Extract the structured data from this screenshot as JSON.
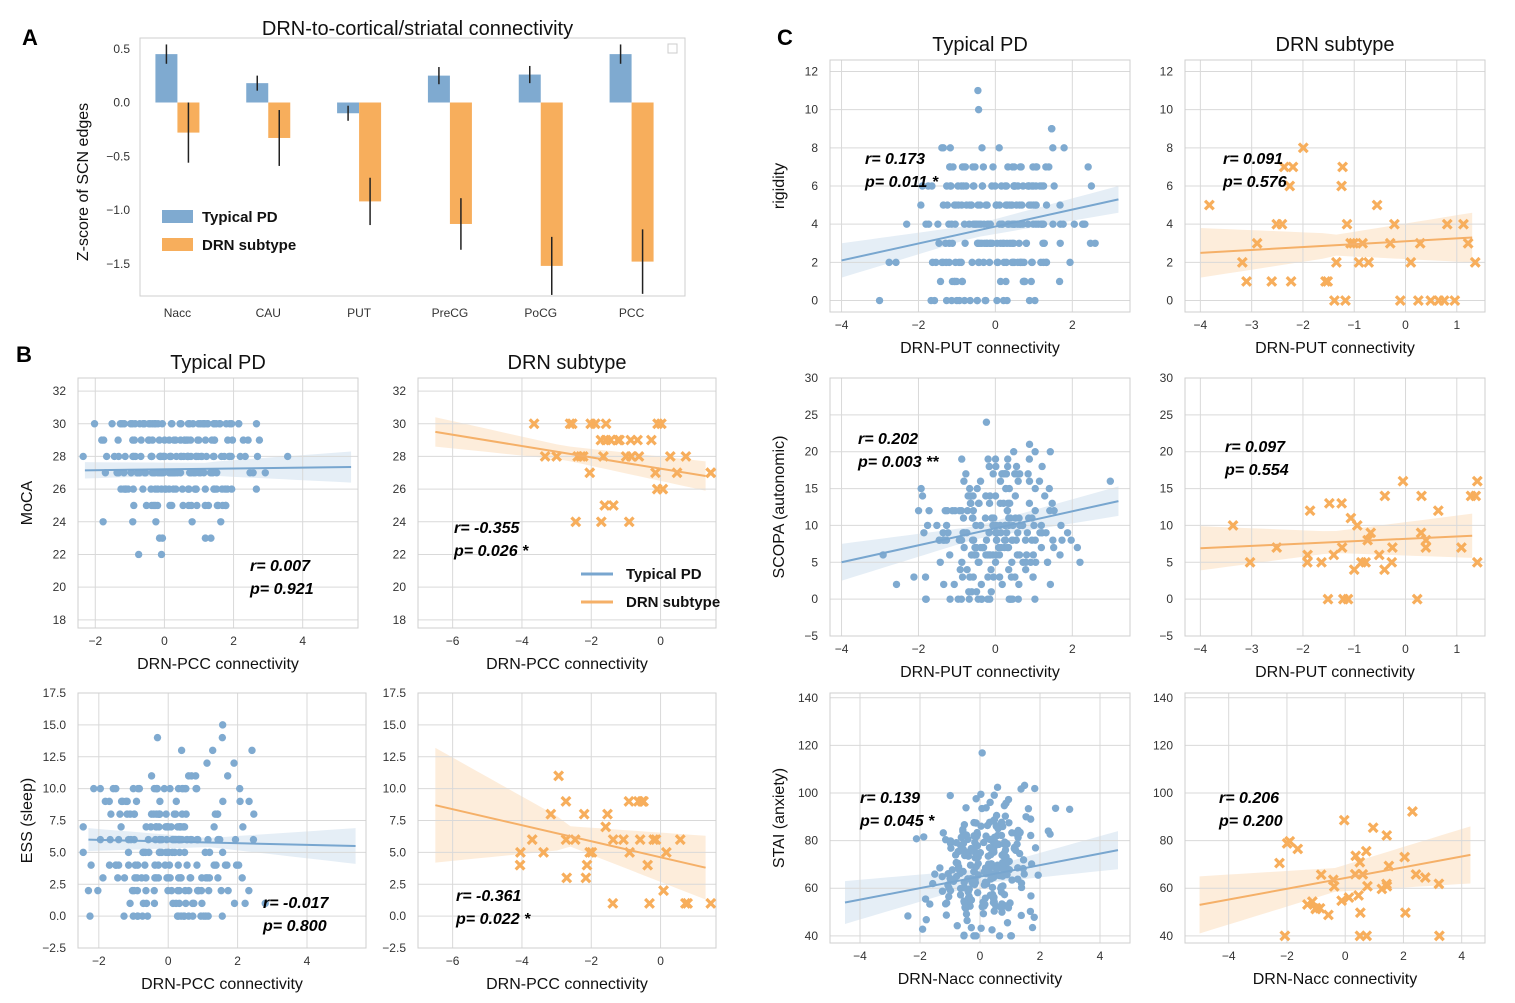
{
  "colors": {
    "typical": "#7FAAD0",
    "drn": "#F7AE5C",
    "typical_line": "#78A6CF",
    "drn_line": "#F5B068"
  },
  "legend": {
    "typical": "Typical PD",
    "drn": "DRN subtype"
  },
  "chart_data": [
    {
      "id": "A",
      "panel_label": "A",
      "type": "bar",
      "title": "DRN-to-cortical/striatal connectivity",
      "xlabel": "",
      "ylabel": "Z-score of SCN edges",
      "ylim": [
        -1.8,
        0.6
      ],
      "yticks": [
        -1.5,
        -1.0,
        -0.5,
        0.0,
        0.5
      ],
      "ytick_labels": [
        "−1.5",
        "−1.0",
        "−0.5",
        "0.0",
        "0.5"
      ],
      "categories": [
        "Nacc",
        "CAU",
        "PUT",
        "PreCG",
        "PoCG",
        "PCC"
      ],
      "series": [
        {
          "name": "Typical PD",
          "values": [
            0.45,
            0.18,
            -0.1,
            0.25,
            0.26,
            0.45
          ],
          "err": [
            0.09,
            0.07,
            0.07,
            0.08,
            0.08,
            0.09
          ]
        },
        {
          "name": "DRN subtype",
          "values": [
            -0.28,
            -0.33,
            -0.92,
            -1.13,
            -1.52,
            -1.48
          ],
          "err": [
            0.28,
            0.26,
            0.22,
            0.24,
            0.27,
            0.3
          ]
        }
      ],
      "grid": false,
      "legend_position": "lower-left"
    },
    {
      "id": "B1",
      "panel_label": "B",
      "type": "scatter",
      "title": "Typical PD",
      "xlabel": "DRN-PCC connectivity",
      "ylabel": "MoCA",
      "xlim": [
        -2.5,
        5.6
      ],
      "ylim": [
        17.5,
        32.8
      ],
      "xticks": [
        -2,
        0,
        2,
        4
      ],
      "xtick_labels": [
        "−2",
        "0",
        "2",
        "4"
      ],
      "yticks": [
        18,
        20,
        22,
        24,
        26,
        28,
        30,
        32
      ],
      "ytick_labels": [
        "18",
        "20",
        "22",
        "24",
        "26",
        "28",
        "30",
        "32"
      ],
      "stats": [
        "r= 0.007",
        "p= 0.921"
      ],
      "fit": [
        -2.3,
        27.15,
        5.4,
        27.35
      ],
      "band": [
        0.5,
        0.35,
        0.45,
        0.95
      ],
      "group": "typical"
    },
    {
      "id": "B2",
      "type": "scatter",
      "title": "DRN subtype",
      "xlabel": "DRN-PCC connectivity",
      "ylabel": "",
      "xlim": [
        -7.0,
        1.6
      ],
      "ylim": [
        17.5,
        32.8
      ],
      "xticks": [
        -6,
        -4,
        -2,
        0
      ],
      "xtick_labels": [
        "−6",
        "−4",
        "−2",
        "0"
      ],
      "yticks": [
        18,
        20,
        22,
        24,
        26,
        28,
        30,
        32
      ],
      "ytick_labels": [
        "18",
        "20",
        "22",
        "24",
        "26",
        "28",
        "30",
        "32"
      ],
      "stats": [
        "r= -0.355",
        "p= 0.026 *"
      ],
      "fit": [
        -6.5,
        29.5,
        1.3,
        26.8
      ],
      "band": [
        0.9,
        0.4,
        0.45,
        0.9
      ],
      "group": "drn",
      "legend": true
    },
    {
      "id": "B3",
      "type": "scatter",
      "title": "",
      "xlabel": "DRN-PCC connectivity",
      "ylabel": "ESS (sleep)",
      "xlim": [
        -2.6,
        5.7
      ],
      "ylim": [
        -2.5,
        17.5
      ],
      "xticks": [
        -2,
        0,
        2,
        4
      ],
      "xtick_labels": [
        "−2",
        "0",
        "2",
        "4"
      ],
      "yticks": [
        -2.5,
        0,
        2.5,
        5,
        7.5,
        10,
        12.5,
        15,
        17.5
      ],
      "ytick_labels": [
        "−2.5",
        "0.0",
        "2.5",
        "5.0",
        "7.5",
        "10.0",
        "12.5",
        "15.0",
        "17.5"
      ],
      "stats": [
        "r= -0.017",
        "p= 0.800"
      ],
      "fit": [
        -2.3,
        6.0,
        5.4,
        5.5
      ],
      "band": [
        0.9,
        0.3,
        0.45,
        1.4
      ],
      "group": "typical"
    },
    {
      "id": "B4",
      "type": "scatter",
      "title": "",
      "xlabel": "DRN-PCC connectivity",
      "ylabel": "",
      "xlim": [
        -7.0,
        1.6
      ],
      "ylim": [
        -2.5,
        17.5
      ],
      "xticks": [
        -6,
        -4,
        -2,
        0
      ],
      "xtick_labels": [
        "−6",
        "−4",
        "−2",
        "0"
      ],
      "yticks": [
        -2.5,
        0,
        2.5,
        5,
        7.5,
        10,
        12.5,
        15,
        17.5
      ],
      "ytick_labels": [
        "−2.5",
        "0.0",
        "2.5",
        "5.0",
        "7.5",
        "10.0",
        "12.5",
        "15.0",
        "17.5"
      ],
      "stats": [
        "r= -0.361",
        "p= 0.022 *"
      ],
      "fit": [
        -6.5,
        8.7,
        1.3,
        3.8
      ],
      "band": [
        4.5,
        1.0,
        0.8,
        2.5
      ],
      "group": "drn"
    },
    {
      "id": "C1",
      "panel_label": "C",
      "type": "scatter",
      "title": "Typical PD",
      "xlabel": "DRN-PUT connectivity",
      "ylabel": "rigidity",
      "xlim": [
        -4.3,
        3.5
      ],
      "ylim": [
        -0.6,
        12.6
      ],
      "xticks": [
        -4,
        -2,
        0,
        2
      ],
      "xtick_labels": [
        "−4",
        "−2",
        "0",
        "2"
      ],
      "yticks": [
        0,
        2,
        4,
        6,
        8,
        10,
        12
      ],
      "ytick_labels": [
        "0",
        "2",
        "4",
        "6",
        "8",
        "10",
        "12"
      ],
      "stats": [
        "r= 0.173",
        "p= 0.011 *"
      ],
      "fit": [
        -4.0,
        2.1,
        3.2,
        5.3
      ],
      "band": [
        0.9,
        0.3,
        0.35,
        0.7
      ],
      "group": "typical"
    },
    {
      "id": "C2",
      "type": "scatter",
      "title": "DRN subtype",
      "xlabel": "DRN-PUT connectivity",
      "ylabel": "",
      "xlim": [
        -4.3,
        1.55
      ],
      "ylim": [
        -0.6,
        12.6
      ],
      "xticks": [
        -4,
        -3,
        -2,
        -1,
        0,
        1
      ],
      "xtick_labels": [
        "−4",
        "−3",
        "−2",
        "−1",
        "0",
        "1"
      ],
      "yticks": [
        0,
        2,
        4,
        6,
        8,
        10,
        12
      ],
      "ytick_labels": [
        "0",
        "2",
        "4",
        "6",
        "8",
        "10",
        "12"
      ],
      "stats": [
        "r= 0.091",
        "p= 0.576"
      ],
      "fit": [
        -4.0,
        2.5,
        1.3,
        3.3
      ],
      "band": [
        1.3,
        0.6,
        0.55,
        1.3
      ],
      "group": "drn"
    },
    {
      "id": "C3",
      "type": "scatter",
      "title": "",
      "xlabel": "DRN-PUT connectivity",
      "ylabel": "SCOPA (autonomic)",
      "xlim": [
        -4.3,
        3.5
      ],
      "ylim": [
        -5,
        30
      ],
      "xticks": [
        -4,
        -2,
        0,
        2
      ],
      "xtick_labels": [
        "−4",
        "−2",
        "0",
        "2"
      ],
      "yticks": [
        -5,
        0,
        5,
        10,
        15,
        20,
        25,
        30
      ],
      "ytick_labels": [
        "−5",
        "0",
        "5",
        "10",
        "15",
        "20",
        "25",
        "30"
      ],
      "stats": [
        "r= 0.202",
        "p= 0.003 **"
      ],
      "fit": [
        -4.0,
        5.0,
        3.2,
        13.3
      ],
      "band": [
        2.5,
        0.8,
        0.9,
        2.0
      ],
      "group": "typical"
    },
    {
      "id": "C4",
      "type": "scatter",
      "title": "",
      "xlabel": "DRN-PUT connectivity",
      "ylabel": "",
      "xlim": [
        -4.3,
        1.55
      ],
      "ylim": [
        -5,
        30
      ],
      "xticks": [
        -4,
        -3,
        -2,
        -1,
        0,
        1
      ],
      "xtick_labels": [
        "−4",
        "−3",
        "−2",
        "−1",
        "0",
        "1"
      ],
      "yticks": [
        -5,
        0,
        5,
        10,
        15,
        20,
        25,
        30
      ],
      "ytick_labels": [
        "−5",
        "0",
        "5",
        "10",
        "15",
        "20",
        "25",
        "30"
      ],
      "stats": [
        "r= 0.097",
        "p= 0.554"
      ],
      "fit": [
        -4.0,
        6.9,
        1.3,
        8.6
      ],
      "band": [
        3.0,
        1.4,
        1.5,
        3.0
      ],
      "group": "drn"
    },
    {
      "id": "C5",
      "type": "scatter",
      "title": "",
      "xlabel": "DRN-Nacc connectivity",
      "ylabel": "STAI (anxiety)",
      "xlim": [
        -5.0,
        5.0
      ],
      "ylim": [
        37,
        142
      ],
      "xticks": [
        -4,
        -2,
        0,
        2,
        4
      ],
      "xtick_labels": [
        "−4",
        "−2",
        "0",
        "2",
        "4"
      ],
      "yticks": [
        40,
        60,
        80,
        100,
        120,
        140
      ],
      "ytick_labels": [
        "40",
        "60",
        "80",
        "100",
        "120",
        "140"
      ],
      "stats": [
        "r= 0.139",
        "p= 0.045 *"
      ],
      "fit": [
        -4.5,
        54.0,
        4.6,
        76.0
      ],
      "band": [
        9,
        3,
        3,
        8
      ],
      "group": "typical"
    },
    {
      "id": "C6",
      "type": "scatter",
      "title": "",
      "xlabel": "DRN-Nacc connectivity",
      "ylabel": "",
      "xlim": [
        -5.5,
        4.8
      ],
      "ylim": [
        37,
        142
      ],
      "xticks": [
        -4,
        -2,
        0,
        2,
        4
      ],
      "xtick_labels": [
        "−4",
        "−2",
        "0",
        "2",
        "4"
      ],
      "yticks": [
        40,
        60,
        80,
        100,
        120,
        140
      ],
      "ytick_labels": [
        "40",
        "60",
        "80",
        "100",
        "120",
        "140"
      ],
      "stats": [
        "r= 0.206",
        "p= 0.200"
      ],
      "fit": [
        -5.0,
        53.0,
        4.3,
        74.0
      ],
      "band": [
        12,
        5,
        5,
        12
      ],
      "group": "drn"
    }
  ]
}
